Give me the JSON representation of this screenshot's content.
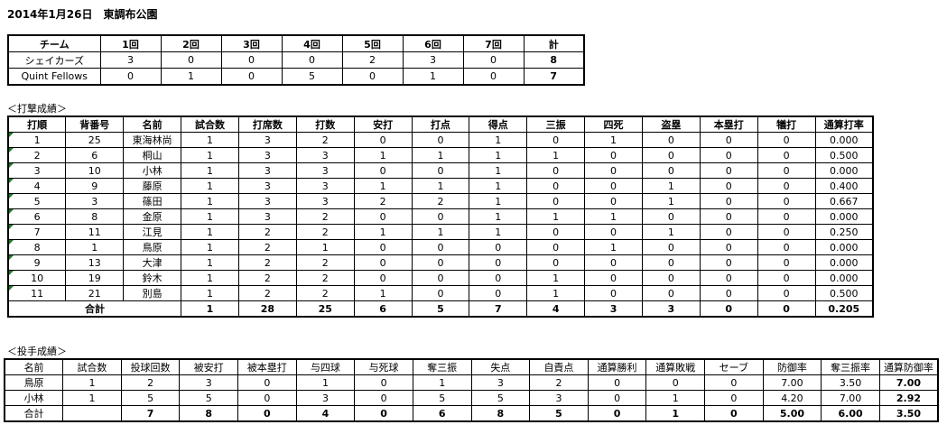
{
  "title": "2014年1月26日　東調布公園",
  "scoreboard": {
    "headers": [
      "チーム",
      "1回",
      "2回",
      "3回",
      "4回",
      "5回",
      "6回",
      "7回",
      "計"
    ],
    "rows": [
      [
        "シェイカーズ",
        "3",
        "0",
        "0",
        "0",
        "2",
        "3",
        "0",
        "8"
      ],
      [
        "Quint Fellows",
        "0",
        "1",
        "0",
        "5",
        "0",
        "1",
        "0",
        "7"
      ]
    ]
  },
  "batting": {
    "label": "＜打撃成績＞",
    "headers": [
      "打順",
      "背番号",
      "名前",
      "試合数",
      "打席数",
      "打数",
      "安打",
      "打点",
      "得点",
      "三振",
      "四死",
      "盗塁",
      "本塁打",
      "犠打",
      "通算打率"
    ],
    "rows": [
      [
        "1",
        "25",
        "東海林尚",
        "1",
        "3",
        "2",
        "0",
        "0",
        "1",
        "0",
        "1",
        "0",
        "0",
        "0",
        "0.000"
      ],
      [
        "2",
        "6",
        "桐山",
        "1",
        "3",
        "3",
        "1",
        "1",
        "1",
        "1",
        "0",
        "0",
        "0",
        "0",
        "0.500"
      ],
      [
        "3",
        "10",
        "小林",
        "1",
        "3",
        "3",
        "0",
        "0",
        "1",
        "0",
        "0",
        "0",
        "0",
        "0",
        "0.000"
      ],
      [
        "4",
        "9",
        "藤原",
        "1",
        "3",
        "3",
        "1",
        "1",
        "1",
        "0",
        "0",
        "1",
        "0",
        "0",
        "0.400"
      ],
      [
        "5",
        "3",
        "篠田",
        "1",
        "3",
        "3",
        "2",
        "2",
        "1",
        "0",
        "0",
        "1",
        "0",
        "0",
        "0.667"
      ],
      [
        "6",
        "8",
        "金原",
        "1",
        "3",
        "2",
        "0",
        "0",
        "1",
        "1",
        "1",
        "0",
        "0",
        "0",
        "0.000"
      ],
      [
        "7",
        "11",
        "江見",
        "1",
        "2",
        "2",
        "1",
        "1",
        "1",
        "0",
        "0",
        "1",
        "0",
        "0",
        "0.250"
      ],
      [
        "8",
        "1",
        "鳥原",
        "1",
        "2",
        "1",
        "0",
        "0",
        "0",
        "0",
        "1",
        "0",
        "0",
        "0",
        "0.000"
      ],
      [
        "9",
        "13",
        "大津",
        "1",
        "2",
        "2",
        "0",
        "0",
        "0",
        "0",
        "0",
        "0",
        "0",
        "0",
        "0.000"
      ],
      [
        "10",
        "19",
        "鈴木",
        "1",
        "2",
        "2",
        "0",
        "0",
        "0",
        "1",
        "0",
        "0",
        "0",
        "0",
        "0.000"
      ],
      [
        "11",
        "21",
        "別島",
        "1",
        "2",
        "2",
        "1",
        "0",
        "0",
        "1",
        "0",
        "0",
        "0",
        "0",
        "0.500"
      ]
    ],
    "total_label": "合計",
    "totals": [
      "1",
      "28",
      "25",
      "6",
      "5",
      "7",
      "4",
      "3",
      "3",
      "0",
      "0",
      "0.205"
    ]
  },
  "pitching": {
    "label": "＜投手成績＞",
    "headers": [
      "名前",
      "試合数",
      "投球回数",
      "被安打",
      "被本塁打",
      "与四球",
      "与死球",
      "奪三振",
      "失点",
      "自責点",
      "通算勝利",
      "通算敗戦",
      "セーブ",
      "防御率",
      "奪三振率",
      "通算防御率"
    ],
    "rows": [
      [
        "鳥原",
        "1",
        "2",
        "3",
        "0",
        "1",
        "0",
        "1",
        "3",
        "2",
        "0",
        "0",
        "0",
        "7.00",
        "3.50",
        "7.00"
      ],
      [
        "小林",
        "1",
        "5",
        "5",
        "0",
        "3",
        "0",
        "5",
        "5",
        "3",
        "0",
        "1",
        "0",
        "4.20",
        "7.00",
        "2.92"
      ]
    ],
    "total": [
      "合計",
      "",
      "7",
      "8",
      "0",
      "4",
      "0",
      "6",
      "8",
      "5",
      "0",
      "1",
      "0",
      "5.00",
      "6.00",
      "3.50"
    ]
  },
  "colors": {
    "marker": "#1d7a2a"
  }
}
